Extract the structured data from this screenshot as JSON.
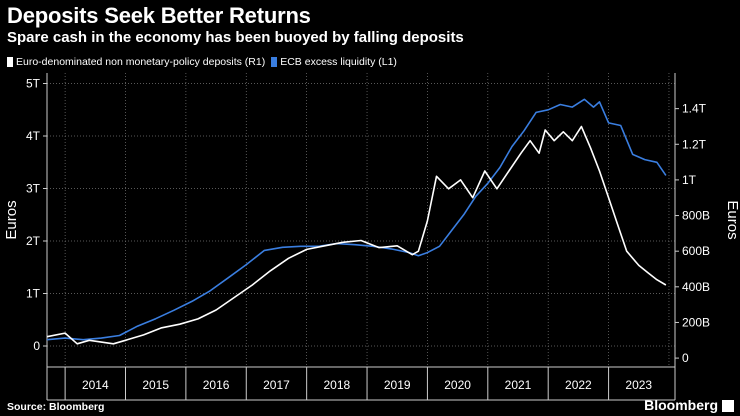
{
  "title": "Deposits Seek Better Returns",
  "subtitle": "Spare cash in the economy has been buoyed by falling deposits",
  "source": "Source: Bloomberg",
  "brand": "Bloomberg",
  "chart_data": {
    "type": "line",
    "legend": [
      {
        "name": "Euro-denominated non monetary-policy deposits (R1)",
        "color": "#ffffff"
      },
      {
        "name": "ECB excess liquidity (L1)",
        "color": "#3a7ee0"
      }
    ],
    "left_axis": {
      "label": "Euros",
      "range": [
        -0.4,
        5.2
      ],
      "ticks": [
        0,
        1,
        2,
        3,
        4,
        5
      ],
      "tick_labels": [
        "0",
        "1T",
        "2T",
        "3T",
        "4T",
        "5T"
      ]
    },
    "right_axis": {
      "label": "Euros",
      "range": [
        -0.05,
        1.6
      ],
      "ticks": [
        0,
        0.2,
        0.4,
        0.6,
        0.8,
        1.0,
        1.2,
        1.4
      ],
      "tick_labels": [
        "0",
        "200B",
        "400B",
        "600B",
        "800B",
        "1T",
        "1.2T",
        "1.4T"
      ]
    },
    "x_axis": {
      "range": [
        2013.7,
        2024.1
      ],
      "categories": [
        "2014",
        "2015",
        "2016",
        "2017",
        "2018",
        "2019",
        "2020",
        "2021",
        "2022",
        "2023"
      ]
    },
    "grid": true,
    "series": [
      {
        "name": "ECB excess liquidity (L1)",
        "axis": "left",
        "color": "#3a7ee0",
        "x": [
          2013.7,
          2014.0,
          2014.3,
          2014.6,
          2014.9,
          2015.2,
          2015.5,
          2015.8,
          2016.1,
          2016.4,
          2016.7,
          2017.0,
          2017.3,
          2017.6,
          2017.9,
          2018.2,
          2018.5,
          2018.8,
          2019.1,
          2019.4,
          2019.7,
          2019.85,
          2020.0,
          2020.2,
          2020.4,
          2020.6,
          2020.8,
          2021.0,
          2021.2,
          2021.4,
          2021.6,
          2021.8,
          2022.0,
          2022.2,
          2022.4,
          2022.6,
          2022.75,
          2022.85,
          2023.0,
          2023.2,
          2023.4,
          2023.6,
          2023.8,
          2023.95
        ],
        "values": [
          0.12,
          0.15,
          0.12,
          0.15,
          0.2,
          0.38,
          0.52,
          0.68,
          0.85,
          1.05,
          1.3,
          1.55,
          1.82,
          1.88,
          1.9,
          1.9,
          1.95,
          1.93,
          1.9,
          1.85,
          1.78,
          1.72,
          1.78,
          1.9,
          2.2,
          2.5,
          2.85,
          3.1,
          3.4,
          3.8,
          4.1,
          4.45,
          4.5,
          4.6,
          4.55,
          4.7,
          4.55,
          4.65,
          4.25,
          4.2,
          3.65,
          3.55,
          3.5,
          3.25
        ]
      },
      {
        "name": "Euro-denominated non monetary-policy deposits (R1)",
        "axis": "right",
        "color": "#ffffff",
        "x": [
          2013.7,
          2014.0,
          2014.2,
          2014.4,
          2014.6,
          2014.8,
          2015.0,
          2015.3,
          2015.6,
          2015.9,
          2016.2,
          2016.5,
          2016.8,
          2017.1,
          2017.4,
          2017.7,
          2018.0,
          2018.3,
          2018.6,
          2018.9,
          2019.2,
          2019.5,
          2019.75,
          2019.85,
          2020.0,
          2020.15,
          2020.35,
          2020.55,
          2020.75,
          2020.95,
          2021.15,
          2021.35,
          2021.55,
          2021.7,
          2021.85,
          2021.95,
          2022.1,
          2022.25,
          2022.4,
          2022.55,
          2022.7,
          2022.85,
          2023.0,
          2023.15,
          2023.3,
          2023.5,
          2023.65,
          2023.8,
          2023.95
        ],
        "values": [
          0.12,
          0.14,
          0.08,
          0.1,
          0.09,
          0.08,
          0.1,
          0.13,
          0.17,
          0.19,
          0.22,
          0.27,
          0.34,
          0.41,
          0.49,
          0.56,
          0.61,
          0.63,
          0.65,
          0.66,
          0.62,
          0.63,
          0.58,
          0.6,
          0.77,
          1.02,
          0.95,
          1.0,
          0.9,
          1.05,
          0.95,
          1.05,
          1.15,
          1.22,
          1.15,
          1.28,
          1.22,
          1.27,
          1.22,
          1.3,
          1.18,
          1.05,
          0.9,
          0.75,
          0.6,
          0.52,
          0.48,
          0.44,
          0.41
        ]
      }
    ]
  }
}
